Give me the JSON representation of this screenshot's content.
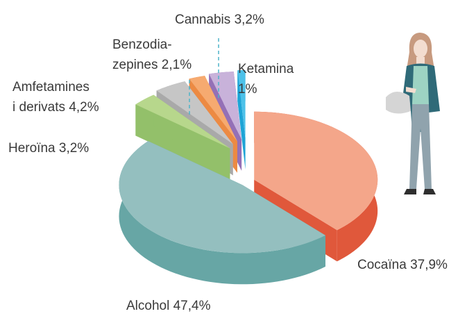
{
  "chart_data": {
    "type": "pie3d",
    "categories": [
      "Cocaïna",
      "Alcohol",
      "Heroïna",
      "Amfetamines\ni derivats",
      "Benzodia-\nzepines",
      "Cannabis",
      "Ketamina"
    ],
    "values": [
      37.9,
      47.4,
      3.2,
      4.2,
      2.1,
      3.2,
      1
    ],
    "value_labels": [
      "37,9%",
      "47,4%",
      "3,2%",
      "4,2%",
      "2,1%",
      "3,2%",
      "1%"
    ],
    "colors": [
      "#f4a68a",
      "#94bfbf",
      "#b7d78c",
      "#c6c6c6",
      "#f6aa70",
      "#c8b2da",
      "#4dc1e9"
    ],
    "side_colors": [
      "#e0583b",
      "#67a6a5",
      "#93c06a",
      "#a9a9a9",
      "#ec8a43",
      "#9470b6",
      "#1ea4d6"
    ]
  }
}
